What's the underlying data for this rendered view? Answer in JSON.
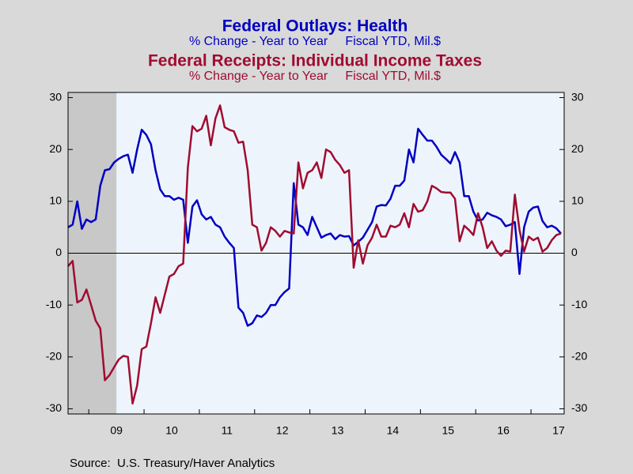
{
  "chart_data": {
    "type": "line",
    "title": "Federal Outlays: Health",
    "subtitle": "% Change - Year to Year     Fiscal YTD, Mil.$",
    "title2": "Federal Receipts: Individual Income Taxes",
    "subtitle2": "% Change - Year to Year     Fiscal YTD, Mil.$",
    "source": "Source:  U.S. Treasury/Haver Analytics",
    "x": [
      2008.625,
      2008.708,
      2008.792,
      2008.875,
      2008.958,
      2009.042,
      2009.125,
      2009.208,
      2009.292,
      2009.375,
      2009.458,
      2009.542,
      2009.625,
      2009.708,
      2009.792,
      2009.875,
      2009.958,
      2010.042,
      2010.125,
      2010.208,
      2010.292,
      2010.375,
      2010.458,
      2010.542,
      2010.625,
      2010.708,
      2010.792,
      2010.875,
      2010.958,
      2011.042,
      2011.125,
      2011.208,
      2011.292,
      2011.375,
      2011.458,
      2011.542,
      2011.625,
      2011.708,
      2011.792,
      2011.875,
      2011.958,
      2012.042,
      2012.125,
      2012.208,
      2012.292,
      2012.375,
      2012.458,
      2012.542,
      2012.625,
      2012.708,
      2012.792,
      2012.875,
      2012.958,
      2013.042,
      2013.125,
      2013.208,
      2013.292,
      2013.375,
      2013.458,
      2013.542,
      2013.625,
      2013.708,
      2013.792,
      2013.875,
      2013.958,
      2014.042,
      2014.125,
      2014.208,
      2014.292,
      2014.375,
      2014.458,
      2014.542,
      2014.625,
      2014.708,
      2014.792,
      2014.875,
      2014.958,
      2015.042,
      2015.125,
      2015.208,
      2015.292,
      2015.375,
      2015.458,
      2015.542,
      2015.625,
      2015.708,
      2015.792,
      2015.875,
      2015.958,
      2016.042,
      2016.125,
      2016.208,
      2016.292,
      2016.375,
      2016.458,
      2016.542,
      2016.625,
      2016.708,
      2016.792,
      2016.875,
      2016.958,
      2017.042,
      2017.125,
      2017.208,
      2017.292,
      2017.375,
      2017.458,
      2017.542
    ],
    "series": [
      {
        "name": "Federal Outlays: Health",
        "color": "#0000c0",
        "values": [
          5,
          5.5,
          10,
          4.7,
          6.5,
          6,
          6.5,
          13,
          16,
          16.2,
          17.5,
          18.2,
          18.7,
          19,
          15.5,
          20,
          23.8,
          22.8,
          21,
          16,
          12.3,
          11,
          11,
          10.3,
          10.7,
          10.3,
          2,
          9,
          10.2,
          7.5,
          6.5,
          7,
          5.5,
          5,
          3.2,
          2,
          1,
          -10.5,
          -11.5,
          -14,
          -13.5,
          -12,
          -12.3,
          -11.5,
          -10,
          -10,
          -8.5,
          -7.5,
          -6.8,
          13.5,
          5.5,
          5,
          3.5,
          7,
          5,
          3,
          3.5,
          3.8,
          2.7,
          3.5,
          3.2,
          3.3,
          1.5,
          2.2,
          3,
          4.5,
          6,
          9,
          9.3,
          9.2,
          10.5,
          13,
          13,
          14,
          20,
          17.5,
          24,
          22.8,
          21.7,
          21.7,
          20.5,
          19,
          18.2,
          17.3,
          19.5,
          17.5,
          11,
          11,
          8,
          6.3,
          6.5,
          7.8,
          7.3,
          7,
          6.5,
          5.2,
          5.5,
          6,
          -4,
          5,
          8,
          8.8,
          9,
          6.2,
          5,
          5.3,
          4.8,
          3.8
        ]
      },
      {
        "name": "Federal Receipts: Individual Income Taxes",
        "color": "#a00c30",
        "values": [
          -2.5,
          -1.5,
          -9.5,
          -9,
          -7,
          -10,
          -13,
          -14.5,
          -24.5,
          -23.5,
          -22,
          -20.5,
          -19.8,
          -20,
          -29,
          -25.5,
          -18.5,
          -18,
          -13.5,
          -8.5,
          -11.5,
          -8,
          -4.5,
          -4,
          -2.5,
          -2,
          16.5,
          24.5,
          23.5,
          24,
          26.5,
          20.8,
          26,
          28.5,
          24.3,
          23.8,
          23.5,
          21.3,
          21.5,
          16,
          5.5,
          5,
          0.5,
          2,
          5,
          4.3,
          3.2,
          4.3,
          4,
          3.8,
          17.5,
          12.5,
          15.5,
          16,
          17.5,
          14.5,
          20,
          19.5,
          18,
          17,
          15.5,
          16,
          -2.8,
          2.5,
          -2,
          1.5,
          3,
          5.5,
          3.2,
          3.2,
          5.3,
          5,
          5.5,
          7.7,
          5,
          9.5,
          8,
          8.3,
          10,
          13,
          12.5,
          11.8,
          11.7,
          11.7,
          10.5,
          2.3,
          5.3,
          4.5,
          3.5,
          7.7,
          5,
          1,
          2.3,
          0.5,
          -0.5,
          0.5,
          0.3,
          11.3,
          4.5,
          0.3,
          3.2,
          2.5,
          3,
          0.3,
          1,
          2.5,
          3.5,
          3.8
        ]
      }
    ],
    "xlim": [
      2008.625,
      2017.6
    ],
    "xticks": [
      {
        "value": 2009.5,
        "label": "09"
      },
      {
        "value": 2010.5,
        "label": "10"
      },
      {
        "value": 2011.5,
        "label": "11"
      },
      {
        "value": 2012.5,
        "label": "12"
      },
      {
        "value": 2013.5,
        "label": "13"
      },
      {
        "value": 2014.5,
        "label": "14"
      },
      {
        "value": 2015.5,
        "label": "15"
      },
      {
        "value": 2016.5,
        "label": "16"
      },
      {
        "value": 2017.5,
        "label": "17"
      }
    ],
    "xtick_marks": [
      2009,
      2010,
      2011,
      2012,
      2013,
      2014,
      2015,
      2016,
      2017
    ],
    "ylim": [
      -31,
      31
    ],
    "yticks": [
      -30,
      -20,
      -10,
      0,
      10,
      20,
      30
    ],
    "shade": [
      2008.625,
      2009.5
    ],
    "shade_color": "#c8c8c8",
    "plot_background": "#eef4fc"
  }
}
